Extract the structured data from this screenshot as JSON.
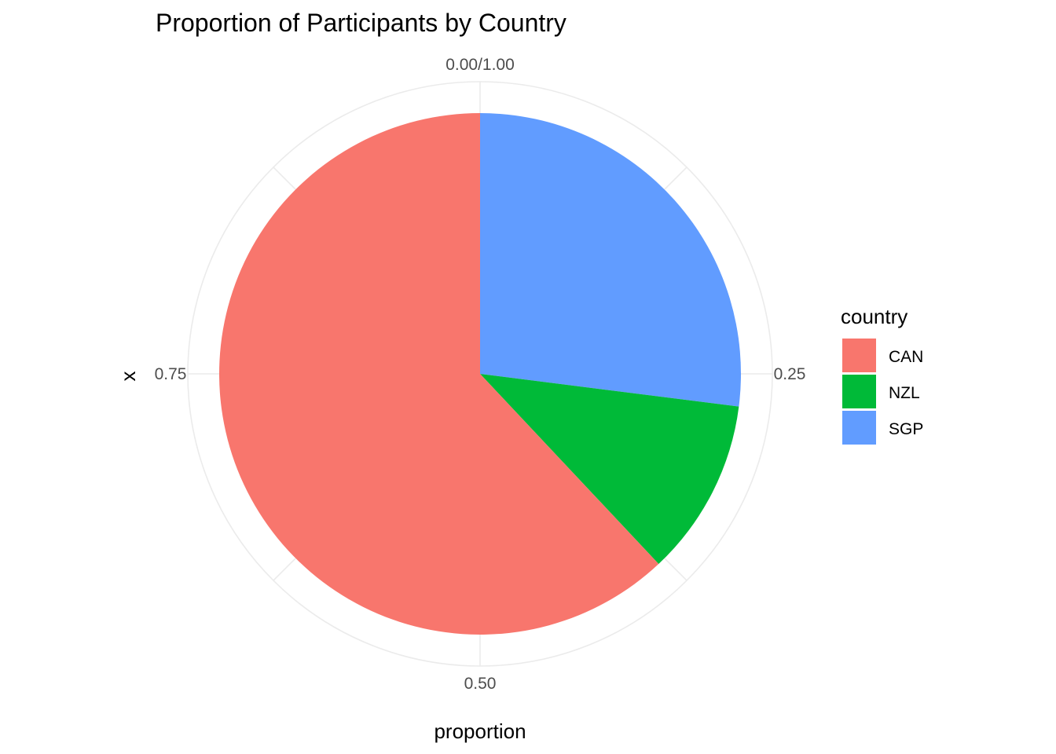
{
  "chart_data": {
    "type": "pie",
    "title": "Proportion of Participants by Country",
    "xlabel": "proportion",
    "ylabel": "x",
    "theta_ticks": [
      {
        "value": 0.0,
        "label": "0.00/1.00"
      },
      {
        "value": 0.25,
        "label": "0.25"
      },
      {
        "value": 0.5,
        "label": "0.50"
      },
      {
        "value": 0.75,
        "label": "0.75"
      }
    ],
    "slices": [
      {
        "label": "SGP",
        "value": 0.27,
        "color": "#619CFF"
      },
      {
        "label": "NZL",
        "value": 0.11,
        "color": "#00BA38"
      },
      {
        "label": "CAN",
        "value": 0.62,
        "color": "#F8766D"
      }
    ],
    "legend": {
      "title": "country",
      "placement": "right",
      "items": [
        {
          "label": "CAN",
          "color": "#F8766D"
        },
        {
          "label": "NZL",
          "color": "#00BA38"
        },
        {
          "label": "SGP",
          "color": "#619CFF"
        }
      ]
    },
    "grid": true
  }
}
